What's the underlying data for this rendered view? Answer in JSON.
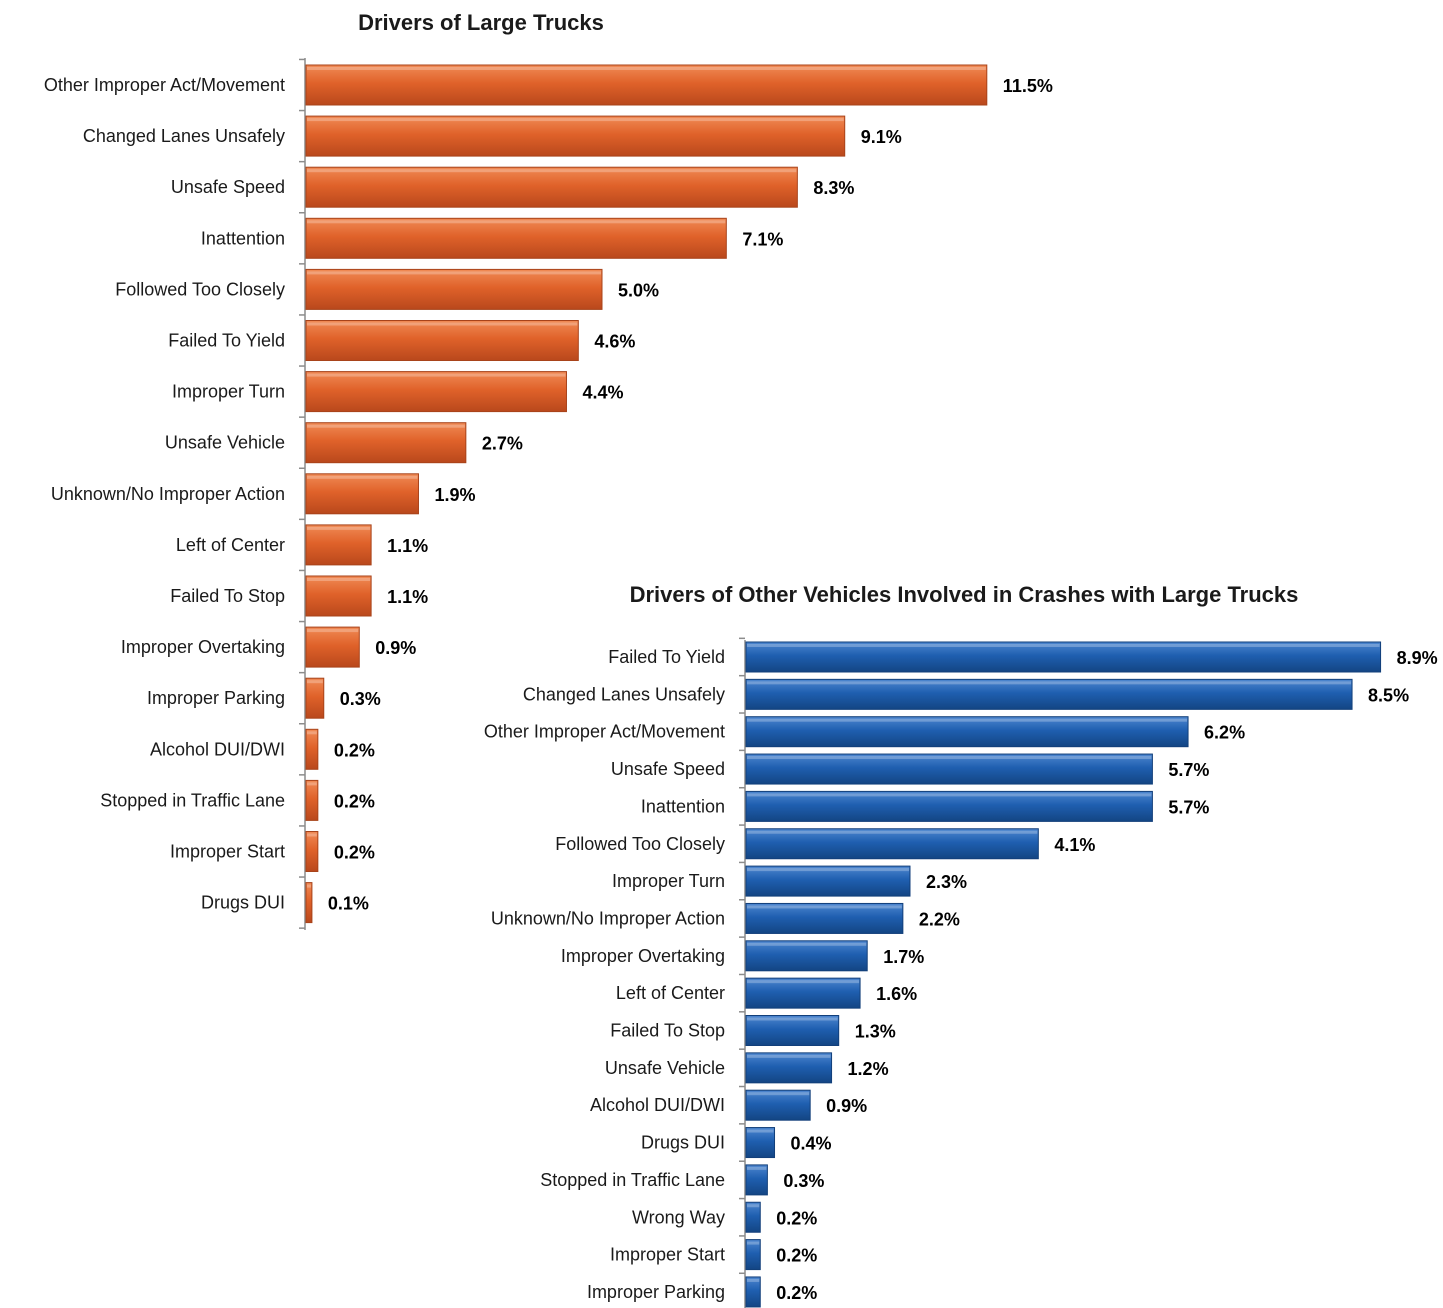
{
  "chart_data": [
    {
      "type": "bar",
      "orientation": "horizontal",
      "title": "Drivers of Large Trucks",
      "color": "#e0622a",
      "color_dark": "#a8431a",
      "categories": [
        "Other Improper Act/Movement",
        "Changed Lanes Unsafely",
        "Unsafe Speed",
        "Inattention",
        "Followed Too Closely",
        "Failed To Yield",
        "Improper Turn",
        "Unsafe Vehicle",
        "Unknown/No Improper Action",
        "Left of Center",
        "Failed To Stop",
        "Improper Overtaking",
        "Improper Parking",
        "Alcohol DUI/DWI",
        "Stopped in Traffic Lane",
        "Improper Start",
        "Drugs DUI"
      ],
      "values": [
        11.5,
        9.1,
        8.3,
        7.1,
        5.0,
        4.6,
        4.4,
        2.7,
        1.9,
        1.1,
        1.1,
        0.9,
        0.3,
        0.2,
        0.2,
        0.2,
        0.1
      ],
      "labels": [
        "11.5%",
        "9.1%",
        "8.3%",
        "7.1%",
        "5.0%",
        "4.6%",
        "4.4%",
        "2.7%",
        "1.9%",
        "1.1%",
        "1.1%",
        "0.9%",
        "0.3%",
        "0.2%",
        "0.2%",
        "0.2%",
        "0.1%"
      ]
    },
    {
      "type": "bar",
      "orientation": "horizontal",
      "title": "Drivers of Other Vehicles Involved in Crashes with Large Trucks",
      "color": "#1f5fb0",
      "color_dark": "#123f7a",
      "categories": [
        "Failed To Yield",
        "Changed Lanes Unsafely",
        "Other Improper Act/Movement",
        "Unsafe Speed",
        "Inattention",
        "Followed Too Closely",
        "Improper Turn",
        "Unknown/No Improper Action",
        "Improper Overtaking",
        "Left of Center",
        "Failed To Stop",
        "Unsafe Vehicle",
        "Alcohol DUI/DWI",
        "Drugs DUI",
        "Stopped in Traffic Lane",
        "Wrong Way",
        "Improper Start",
        "Improper Parking"
      ],
      "values": [
        8.9,
        8.5,
        6.2,
        5.7,
        5.7,
        4.1,
        2.3,
        2.2,
        1.7,
        1.6,
        1.3,
        1.2,
        0.9,
        0.4,
        0.3,
        0.2,
        0.2,
        0.2
      ],
      "labels": [
        "8.9%",
        "8.5%",
        "6.2%",
        "5.7%",
        "5.7%",
        "4.1%",
        "2.3%",
        "2.2%",
        "1.7%",
        "1.6%",
        "1.3%",
        "1.2%",
        "0.9%",
        "0.4%",
        "0.3%",
        "0.2%",
        "0.2%",
        "0.2%"
      ]
    }
  ]
}
